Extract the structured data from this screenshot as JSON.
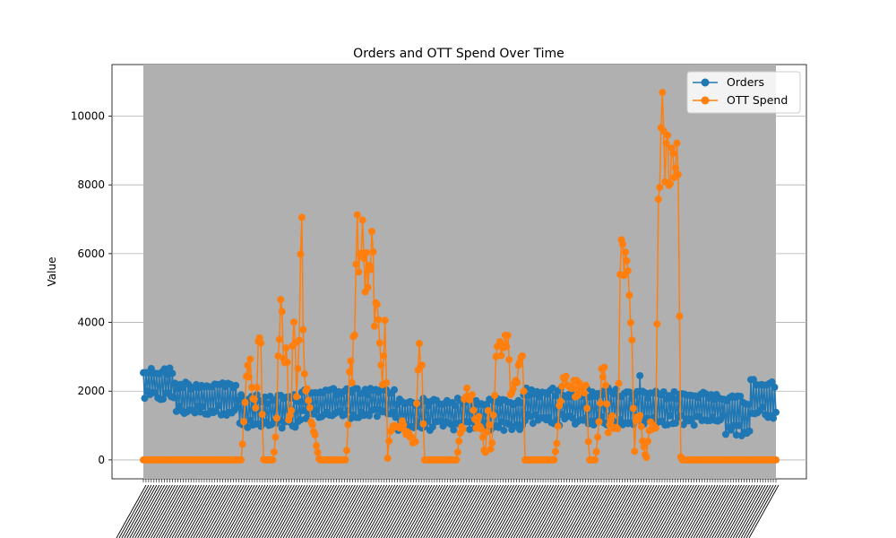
{
  "chart_data": {
    "type": "line",
    "title": "Orders and OTT Spend Over Time",
    "xlabel": "",
    "ylabel": "Value",
    "ylim": [
      -550,
      11500
    ],
    "yticks": [
      0,
      2000,
      4000,
      6000,
      8000,
      10000
    ],
    "grid": "y",
    "legend_position": "upper right",
    "x_tick_labels": "dense rotated date labels (illegible)",
    "series": [
      {
        "name": "Orders",
        "color": "#1f77b4",
        "marker": "circle",
        "approx_points": 480,
        "segments": [
          {
            "from": 0.0,
            "to": 0.05,
            "value_range": [
              1700,
              2700
            ]
          },
          {
            "from": 0.05,
            "to": 0.15,
            "value_range": [
              1300,
              2300
            ]
          },
          {
            "from": 0.15,
            "to": 0.25,
            "value_range": [
              850,
              1900
            ]
          },
          {
            "from": 0.25,
            "to": 0.4,
            "value_range": [
              1200,
              2100
            ]
          },
          {
            "from": 0.4,
            "to": 0.6,
            "value_range": [
              850,
              1800
            ]
          },
          {
            "from": 0.6,
            "to": 0.75,
            "value_range": [
              1000,
              2100
            ]
          },
          {
            "from": 0.75,
            "to": 0.92,
            "value_range": [
              1000,
              2000
            ]
          },
          {
            "from": 0.92,
            "to": 0.96,
            "value_range": [
              700,
              1900
            ]
          },
          {
            "from": 0.96,
            "to": 1.0,
            "value_range": [
              1200,
              2400
            ]
          }
        ]
      },
      {
        "name": "OTT Spend",
        "color": "#ff7f0e",
        "marker": "circle",
        "approx_points": 480,
        "points": [
          [
            0.0,
            0
          ],
          [
            0.155,
            0
          ],
          [
            0.158,
            800
          ],
          [
            0.162,
            2100
          ],
          [
            0.166,
            2900
          ],
          [
            0.17,
            2500
          ],
          [
            0.174,
            2000
          ],
          [
            0.178,
            1500
          ],
          [
            0.182,
            3800
          ],
          [
            0.186,
            3300
          ],
          [
            0.188,
            1100
          ],
          [
            0.19,
            0
          ],
          [
            0.205,
            0
          ],
          [
            0.21,
            800
          ],
          [
            0.214,
            3700
          ],
          [
            0.218,
            5200
          ],
          [
            0.222,
            3000
          ],
          [
            0.226,
            3500
          ],
          [
            0.23,
            900
          ],
          [
            0.234,
            1500
          ],
          [
            0.238,
            4600
          ],
          [
            0.242,
            1800
          ],
          [
            0.246,
            3400
          ],
          [
            0.25,
            6850
          ],
          [
            0.254,
            2500
          ],
          [
            0.258,
            2100
          ],
          [
            0.262,
            1600
          ],
          [
            0.266,
            1200
          ],
          [
            0.27,
            800
          ],
          [
            0.274,
            400
          ],
          [
            0.278,
            0
          ],
          [
            0.32,
            0
          ],
          [
            0.323,
            500
          ],
          [
            0.326,
            2700
          ],
          [
            0.33,
            2500
          ],
          [
            0.334,
            4100
          ],
          [
            0.338,
            6600
          ],
          [
            0.342,
            5800
          ],
          [
            0.346,
            6400
          ],
          [
            0.35,
            5300
          ],
          [
            0.354,
            5500
          ],
          [
            0.358,
            4900
          ],
          [
            0.362,
            6300
          ],
          [
            0.366,
            4200
          ],
          [
            0.37,
            3900
          ],
          [
            0.374,
            3600
          ],
          [
            0.378,
            2400
          ],
          [
            0.382,
            4300
          ],
          [
            0.386,
            0
          ],
          [
            0.39,
            900
          ],
          [
            0.4,
            1000
          ],
          [
            0.41,
            1000
          ],
          [
            0.42,
            700
          ],
          [
            0.43,
            500
          ],
          [
            0.436,
            3100
          ],
          [
            0.44,
            3000
          ],
          [
            0.444,
            0
          ],
          [
            0.495,
            0
          ],
          [
            0.5,
            600
          ],
          [
            0.505,
            1000
          ],
          [
            0.51,
            2200
          ],
          [
            0.515,
            1500
          ],
          [
            0.52,
            2000
          ],
          [
            0.525,
            800
          ],
          [
            0.53,
            1200
          ],
          [
            0.535,
            900
          ],
          [
            0.54,
            0
          ],
          [
            0.545,
            1500
          ],
          [
            0.55,
            0
          ],
          [
            0.555,
            2000
          ],
          [
            0.56,
            3300
          ],
          [
            0.565,
            3500
          ],
          [
            0.57,
            2900
          ],
          [
            0.575,
            3700
          ],
          [
            0.58,
            2200
          ],
          [
            0.585,
            2000
          ],
          [
            0.59,
            2500
          ],
          [
            0.595,
            2900
          ],
          [
            0.6,
            3400
          ],
          [
            0.603,
            0
          ],
          [
            0.65,
            0
          ],
          [
            0.655,
            800
          ],
          [
            0.66,
            2000
          ],
          [
            0.67,
            2300
          ],
          [
            0.68,
            2100
          ],
          [
            0.69,
            2000
          ],
          [
            0.7,
            1900
          ],
          [
            0.705,
            0
          ],
          [
            0.715,
            0
          ],
          [
            0.72,
            1200
          ],
          [
            0.725,
            2600
          ],
          [
            0.73,
            2500
          ],
          [
            0.735,
            800
          ],
          [
            0.74,
            1200
          ],
          [
            0.745,
            900
          ],
          [
            0.75,
            1000
          ],
          [
            0.755,
            6100
          ],
          [
            0.76,
            5500
          ],
          [
            0.765,
            5200
          ],
          [
            0.77,
            4100
          ],
          [
            0.773,
            2900
          ],
          [
            0.776,
            0
          ],
          [
            0.78,
            1500
          ],
          [
            0.785,
            1300
          ],
          [
            0.79,
            500
          ],
          [
            0.795,
            0
          ],
          [
            0.8,
            1000
          ],
          [
            0.81,
            1000
          ],
          [
            0.815,
            8300
          ],
          [
            0.818,
            10500
          ],
          [
            0.822,
            10900
          ],
          [
            0.825,
            7700
          ],
          [
            0.828,
            9500
          ],
          [
            0.832,
            8600
          ],
          [
            0.836,
            8900
          ],
          [
            0.84,
            8100
          ],
          [
            0.843,
            10100
          ],
          [
            0.846,
            8600
          ],
          [
            0.849,
            100
          ],
          [
            0.852,
            0
          ],
          [
            1.0,
            0
          ]
        ]
      }
    ]
  }
}
